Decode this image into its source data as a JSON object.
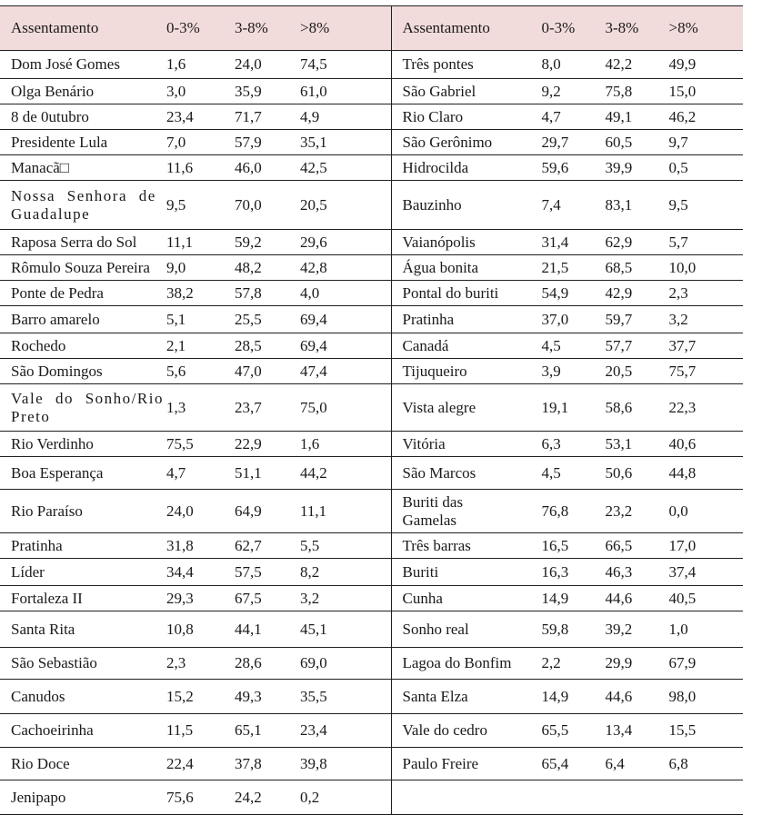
{
  "columns": [
    "Assentamento",
    "0-3%",
    "3-8%",
    ">8%"
  ],
  "colors": {
    "header_bg": "#f2dcdb",
    "line": "#1f1f1f",
    "text": "#1a1a1a"
  },
  "tables": [
    {
      "side": "left",
      "rows": [
        {
          "name": "Dom José Gomes",
          "values": [
            "1,6",
            "24,0",
            "74,5"
          ]
        },
        {
          "name": "Olga Benário",
          "values": [
            "3,0",
            "35,9",
            "61,0"
          ]
        },
        {
          "name": "8 de 0utubro",
          "values": [
            "23,4",
            "71,7",
            "4,9"
          ]
        },
        {
          "name": "Presidente Lula",
          "values": [
            "7,0",
            "57,9",
            "35,1"
          ]
        },
        {
          "name": "Manacã□",
          "values": [
            "11,6",
            "46,0",
            "42,5"
          ]
        },
        {
          "name": "Nossa Senhora de\nGuadalupe",
          "stretch": true,
          "values": [
            "9,5",
            "70,0",
            "20,5"
          ]
        },
        {
          "name": "Raposa Serra do Sol",
          "values": [
            "11,1",
            "59,2",
            "29,6"
          ]
        },
        {
          "name": "Rômulo Souza Pereira",
          "values": [
            "9,0",
            "48,2",
            "42,8"
          ]
        },
        {
          "name": "Ponte de Pedra",
          "values": [
            "38,2",
            "57,8",
            "4,0"
          ]
        },
        {
          "name": "Barro amarelo",
          "values": [
            "5,1",
            "25,5",
            "69,4"
          ]
        },
        {
          "name": "Rochedo",
          "values": [
            "2,1",
            "28,5",
            "69,4"
          ]
        },
        {
          "name": "São Domingos",
          "values": [
            "5,6",
            "47,0",
            "47,4"
          ]
        },
        {
          "name": "Vale do Sonho/Rio\nPreto",
          "stretch": true,
          "values": [
            "1,3",
            "23,7",
            "75,0"
          ]
        },
        {
          "name": "Rio Verdinho",
          "values": [
            "75,5",
            "22,9",
            "1,6"
          ]
        },
        {
          "name": "Boa Esperança",
          "values": [
            "4,7",
            "51,1",
            "44,2"
          ]
        },
        {
          "name": "Rio Paraíso",
          "values": [
            "24,0",
            "64,9",
            "11,1"
          ]
        },
        {
          "name": "Pratinha",
          "values": [
            "31,8",
            "62,7",
            "5,5"
          ]
        },
        {
          "name": "Líder",
          "values": [
            "34,4",
            "57,5",
            "8,2"
          ]
        },
        {
          "name": "Fortaleza II",
          "values": [
            "29,3",
            "67,5",
            "3,2"
          ]
        },
        {
          "name": "Santa Rita",
          "values": [
            "10,8",
            "44,1",
            "45,1"
          ]
        },
        {
          "name": "São Sebastião",
          "values": [
            "2,3",
            "28,6",
            "69,0"
          ]
        },
        {
          "name": "Canudos",
          "values": [
            "15,2",
            "49,3",
            "35,5"
          ]
        },
        {
          "name": "Cachoeirinha",
          "values": [
            "11,5",
            "65,1",
            "23,4"
          ]
        },
        {
          "name": "Rio Doce",
          "values": [
            "22,4",
            "37,8",
            "39,8"
          ]
        },
        {
          "name": "Jenipapo",
          "values": [
            "75,6",
            "24,2",
            "0,2"
          ]
        }
      ]
    },
    {
      "side": "right",
      "rows": [
        {
          "name": "Três pontes",
          "values": [
            "8,0",
            "42,2",
            "49,9"
          ]
        },
        {
          "name": "São Gabriel",
          "values": [
            "9,2",
            "75,8",
            "15,0"
          ]
        },
        {
          "name": "Rio Claro",
          "values": [
            "4,7",
            "49,1",
            "46,2"
          ]
        },
        {
          "name": "São Gerônimo",
          "values": [
            "29,7",
            "60,5",
            "9,7"
          ]
        },
        {
          "name": "Hidrocilda",
          "values": [
            "59,6",
            "39,9",
            "0,5"
          ]
        },
        {
          "name": "Bauzinho",
          "values": [
            "7,4",
            "83,1",
            "9,5"
          ]
        },
        {
          "name": "Vaianópolis",
          "values": [
            "31,4",
            "62,9",
            "5,7"
          ]
        },
        {
          "name": "Água bonita",
          "values": [
            "21,5",
            "68,5",
            "10,0"
          ]
        },
        {
          "name": "Pontal do buriti",
          "values": [
            "54,9",
            "42,9",
            "2,3"
          ]
        },
        {
          "name": "Pratinha",
          "values": [
            "37,0",
            "59,7",
            "3,2"
          ]
        },
        {
          "name": "Canadá",
          "values": [
            "4,5",
            "57,7",
            "37,7"
          ]
        },
        {
          "name": "Tijuqueiro",
          "values": [
            "3,9",
            "20,5",
            "75,7"
          ]
        },
        {
          "name": "Vista alegre",
          "values": [
            "19,1",
            "58,6",
            "22,3"
          ]
        },
        {
          "name": "Vitória",
          "values": [
            "6,3",
            "53,1",
            "40,6"
          ]
        },
        {
          "name": "São Marcos",
          "values": [
            "4,5",
            "50,6",
            "44,8"
          ]
        },
        {
          "name": "Buriti das\nGamelas",
          "values": [
            "76,8",
            "23,2",
            "0,0"
          ]
        },
        {
          "name": "Três barras",
          "values": [
            "16,5",
            "66,5",
            "17,0"
          ]
        },
        {
          "name": "Buriti",
          "values": [
            "16,3",
            "46,3",
            "37,4"
          ]
        },
        {
          "name": "Cunha",
          "values": [
            "14,9",
            "44,6",
            "40,5"
          ]
        },
        {
          "name": "Sonho real",
          "values": [
            "59,8",
            "39,2",
            "1,0"
          ]
        },
        {
          "name": "Lagoa do Bonfim",
          "values": [
            "2,2",
            "29,9",
            "67,9"
          ]
        },
        {
          "name": "Santa Elza",
          "values": [
            "14,9",
            "44,6",
            "98,0"
          ]
        },
        {
          "name": "Vale do cedro",
          "values": [
            "65,5",
            "13,4",
            "15,5"
          ]
        },
        {
          "name": "Paulo Freire",
          "values": [
            "65,4",
            "6,4",
            "6,8"
          ]
        },
        {
          "name": "",
          "values": [
            "",
            "",
            ""
          ]
        }
      ]
    }
  ]
}
